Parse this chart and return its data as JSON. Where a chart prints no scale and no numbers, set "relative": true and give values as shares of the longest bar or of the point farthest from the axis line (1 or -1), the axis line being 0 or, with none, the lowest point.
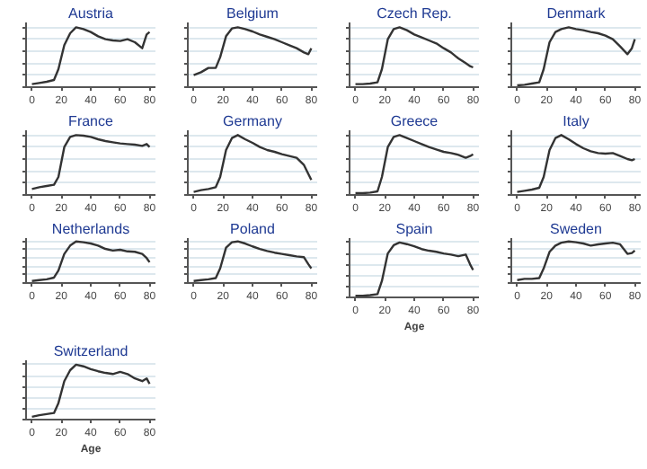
{
  "chart_data": [
    {
      "type": "line",
      "title": "Austria",
      "relative": true,
      "tick_labels": "x",
      "grid": "y",
      "x": [
        0,
        5,
        10,
        15,
        18,
        22,
        26,
        30,
        35,
        40,
        45,
        50,
        55,
        60,
        65,
        70,
        75,
        78,
        80
      ],
      "xlim": [
        -4,
        84
      ],
      "xticks": [
        0,
        20,
        40,
        60,
        80
      ],
      "series": [
        {
          "color": "#333333",
          "values": [
            0.05,
            0.07,
            0.09,
            0.12,
            0.3,
            0.7,
            0.9,
            1.0,
            0.97,
            0.92,
            0.85,
            0.8,
            0.78,
            0.77,
            0.8,
            0.75,
            0.65,
            0.88,
            0.92
          ]
        }
      ]
    },
    {
      "type": "line",
      "title": "Belgium",
      "relative": true,
      "tick_labels": "x",
      "grid": "y",
      "x": [
        0,
        5,
        10,
        15,
        18,
        22,
        26,
        30,
        35,
        40,
        45,
        50,
        55,
        60,
        65,
        70,
        75,
        78,
        80
      ],
      "xlim": [
        -4,
        84
      ],
      "xticks": [
        0,
        20,
        40,
        60,
        80
      ],
      "series": [
        {
          "color": "#333333",
          "values": [
            0.2,
            0.25,
            0.32,
            0.32,
            0.5,
            0.85,
            0.98,
            1.0,
            0.97,
            0.93,
            0.88,
            0.84,
            0.8,
            0.75,
            0.7,
            0.65,
            0.58,
            0.55,
            0.65
          ]
        }
      ]
    },
    {
      "type": "line",
      "title": "Czech Rep.",
      "relative": true,
      "tick_labels": "x",
      "grid": "y",
      "x": [
        0,
        5,
        10,
        15,
        18,
        22,
        26,
        30,
        35,
        40,
        45,
        50,
        55,
        60,
        65,
        70,
        75,
        78,
        80
      ],
      "xlim": [
        -4,
        84
      ],
      "xticks": [
        0,
        20,
        40,
        60,
        80
      ],
      "series": [
        {
          "color": "#333333",
          "values": [
            0.05,
            0.05,
            0.06,
            0.08,
            0.3,
            0.8,
            0.97,
            1.0,
            0.95,
            0.88,
            0.83,
            0.78,
            0.73,
            0.65,
            0.58,
            0.48,
            0.4,
            0.35,
            0.33
          ]
        }
      ]
    },
    {
      "type": "line",
      "title": "Denmark",
      "relative": true,
      "tick_labels": "x",
      "grid": "y",
      "x": [
        0,
        5,
        10,
        15,
        18,
        22,
        26,
        30,
        35,
        40,
        45,
        50,
        55,
        60,
        65,
        70,
        75,
        78,
        80
      ],
      "xlim": [
        -4,
        84
      ],
      "xticks": [
        0,
        20,
        40,
        60,
        80
      ],
      "series": [
        {
          "color": "#333333",
          "values": [
            0.03,
            0.04,
            0.06,
            0.08,
            0.3,
            0.75,
            0.92,
            0.97,
            1.0,
            0.97,
            0.95,
            0.92,
            0.9,
            0.86,
            0.8,
            0.68,
            0.55,
            0.65,
            0.8
          ]
        }
      ]
    },
    {
      "type": "line",
      "title": "France",
      "relative": true,
      "tick_labels": "x",
      "grid": "y",
      "x": [
        0,
        5,
        10,
        15,
        18,
        22,
        26,
        30,
        35,
        40,
        45,
        50,
        55,
        60,
        65,
        70,
        75,
        78,
        80
      ],
      "xlim": [
        -4,
        84
      ],
      "xticks": [
        0,
        20,
        40,
        60,
        80
      ],
      "series": [
        {
          "color": "#333333",
          "values": [
            0.1,
            0.13,
            0.15,
            0.17,
            0.3,
            0.8,
            0.97,
            1.0,
            0.99,
            0.97,
            0.93,
            0.9,
            0.88,
            0.86,
            0.85,
            0.84,
            0.82,
            0.85,
            0.8
          ]
        }
      ]
    },
    {
      "type": "line",
      "title": "Germany",
      "relative": true,
      "tick_labels": "x",
      "grid": "y",
      "x": [
        0,
        5,
        10,
        15,
        18,
        22,
        26,
        30,
        35,
        40,
        45,
        50,
        55,
        60,
        65,
        70,
        75,
        78,
        80
      ],
      "xlim": [
        -4,
        84
      ],
      "xticks": [
        0,
        20,
        40,
        60,
        80
      ],
      "series": [
        {
          "color": "#333333",
          "values": [
            0.05,
            0.08,
            0.1,
            0.13,
            0.3,
            0.75,
            0.95,
            1.0,
            0.93,
            0.87,
            0.8,
            0.75,
            0.72,
            0.68,
            0.65,
            0.62,
            0.5,
            0.35,
            0.25
          ]
        }
      ]
    },
    {
      "type": "line",
      "title": "Greece",
      "relative": true,
      "tick_labels": "x",
      "grid": "y",
      "x": [
        0,
        5,
        10,
        15,
        18,
        22,
        26,
        30,
        35,
        40,
        45,
        50,
        55,
        60,
        65,
        70,
        75,
        78,
        80
      ],
      "xlim": [
        -4,
        84
      ],
      "xticks": [
        0,
        20,
        40,
        60,
        80
      ],
      "series": [
        {
          "color": "#333333",
          "values": [
            0.03,
            0.03,
            0.04,
            0.06,
            0.3,
            0.8,
            0.97,
            1.0,
            0.95,
            0.9,
            0.85,
            0.8,
            0.76,
            0.72,
            0.7,
            0.67,
            0.62,
            0.65,
            0.68
          ]
        }
      ]
    },
    {
      "type": "line",
      "title": "Italy",
      "relative": true,
      "tick_labels": "x",
      "grid": "y",
      "x": [
        0,
        5,
        10,
        15,
        18,
        22,
        26,
        30,
        35,
        40,
        45,
        50,
        55,
        60,
        65,
        70,
        75,
        78,
        80
      ],
      "xlim": [
        -4,
        84
      ],
      "xticks": [
        0,
        20,
        40,
        60,
        80
      ],
      "series": [
        {
          "color": "#333333",
          "values": [
            0.05,
            0.07,
            0.09,
            0.12,
            0.3,
            0.75,
            0.95,
            1.0,
            0.93,
            0.85,
            0.78,
            0.73,
            0.7,
            0.69,
            0.7,
            0.65,
            0.6,
            0.58,
            0.6
          ]
        }
      ]
    },
    {
      "type": "line",
      "title": "Netherlands",
      "relative": true,
      "tick_labels": "x",
      "grid": "y",
      "x": [
        0,
        5,
        10,
        15,
        18,
        22,
        26,
        30,
        35,
        40,
        45,
        50,
        55,
        60,
        65,
        70,
        75,
        78,
        80
      ],
      "xlim": [
        -4,
        84
      ],
      "xticks": [
        0,
        20,
        40,
        60,
        80
      ],
      "series": [
        {
          "color": "#333333",
          "values": [
            0.05,
            0.07,
            0.09,
            0.13,
            0.3,
            0.7,
            0.9,
            1.0,
            0.98,
            0.95,
            0.9,
            0.82,
            0.78,
            0.8,
            0.76,
            0.75,
            0.7,
            0.6,
            0.5
          ]
        }
      ]
    },
    {
      "type": "line",
      "title": "Poland",
      "relative": true,
      "tick_labels": "x",
      "grid": "y",
      "x": [
        0,
        5,
        10,
        15,
        18,
        22,
        26,
        30,
        35,
        40,
        45,
        50,
        55,
        60,
        65,
        70,
        75,
        78,
        80
      ],
      "xlim": [
        -4,
        84
      ],
      "xticks": [
        0,
        20,
        40,
        60,
        80
      ],
      "series": [
        {
          "color": "#333333",
          "values": [
            0.05,
            0.07,
            0.09,
            0.12,
            0.35,
            0.85,
            0.98,
            1.0,
            0.95,
            0.88,
            0.82,
            0.77,
            0.73,
            0.7,
            0.67,
            0.64,
            0.62,
            0.45,
            0.35
          ]
        }
      ]
    },
    {
      "type": "line",
      "title": "Spain",
      "xlabel": "Age",
      "relative": true,
      "tick_labels": "x",
      "grid": "y",
      "x": [
        0,
        5,
        10,
        15,
        18,
        22,
        26,
        30,
        35,
        40,
        45,
        50,
        55,
        60,
        65,
        70,
        75,
        78,
        80
      ],
      "xlim": [
        -4,
        84
      ],
      "xticks": [
        0,
        20,
        40,
        60,
        80
      ],
      "series": [
        {
          "color": "#333333",
          "values": [
            0.03,
            0.03,
            0.04,
            0.06,
            0.3,
            0.8,
            0.95,
            1.0,
            0.97,
            0.93,
            0.88,
            0.85,
            0.83,
            0.8,
            0.78,
            0.75,
            0.78,
            0.6,
            0.5
          ]
        }
      ]
    },
    {
      "type": "line",
      "title": "Sweden",
      "relative": true,
      "tick_labels": "x",
      "grid": "y",
      "x": [
        0,
        5,
        10,
        15,
        18,
        22,
        26,
        30,
        35,
        40,
        45,
        50,
        55,
        60,
        65,
        70,
        75,
        78,
        80
      ],
      "xlim": [
        -4,
        84
      ],
      "xticks": [
        0,
        20,
        40,
        60,
        80
      ],
      "series": [
        {
          "color": "#333333",
          "values": [
            0.07,
            0.1,
            0.1,
            0.12,
            0.35,
            0.75,
            0.9,
            0.97,
            1.0,
            0.98,
            0.95,
            0.9,
            0.93,
            0.95,
            0.97,
            0.93,
            0.7,
            0.72,
            0.78
          ]
        }
      ]
    },
    {
      "type": "line",
      "title": "Switzerland",
      "xlabel": "Age",
      "relative": true,
      "tick_labels": "x",
      "grid": "y",
      "x": [
        0,
        5,
        10,
        15,
        18,
        22,
        26,
        30,
        35,
        40,
        45,
        50,
        55,
        60,
        65,
        70,
        75,
        78,
        80
      ],
      "xlim": [
        -4,
        84
      ],
      "xticks": [
        0,
        20,
        40,
        60,
        80
      ],
      "series": [
        {
          "color": "#333333",
          "values": [
            0.05,
            0.08,
            0.1,
            0.12,
            0.3,
            0.7,
            0.9,
            1.0,
            0.97,
            0.92,
            0.88,
            0.85,
            0.83,
            0.87,
            0.83,
            0.75,
            0.7,
            0.75,
            0.65
          ]
        }
      ]
    }
  ]
}
